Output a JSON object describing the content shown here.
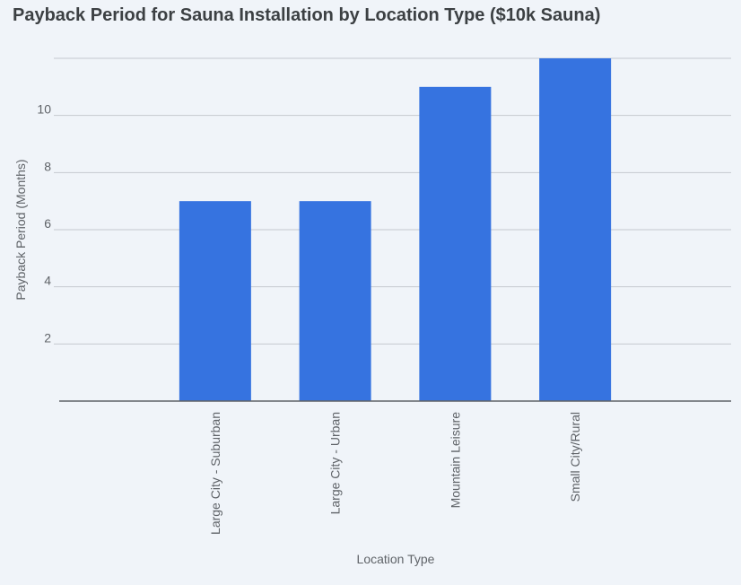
{
  "chart_data": {
    "type": "bar",
    "title": "Payback Period for Sauna Installation by Location Type ($10k Sauna)",
    "xlabel": "Location Type",
    "ylabel": "Payback Period (Months)",
    "categories": [
      "Large City - Suburban",
      "Large City - Urban",
      "Mountain Leisure",
      "Small City/Rural"
    ],
    "values": [
      7,
      7,
      11,
      12
    ],
    "yticks": [
      "2",
      "4",
      "6",
      "8",
      "10"
    ],
    "ylim": [
      0,
      12
    ],
    "grid": true,
    "bar_color": "#3673e0",
    "grid_color": "#c5c9ce",
    "axis_color": "#5f6368"
  }
}
